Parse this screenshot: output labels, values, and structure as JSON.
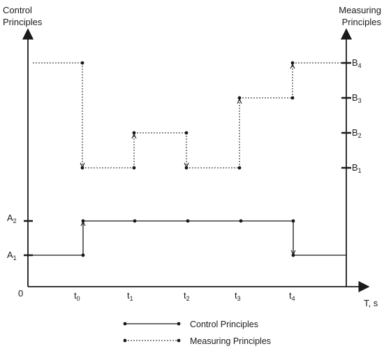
{
  "labels": {
    "left_axis_title": [
      "Control",
      "Principles"
    ],
    "right_axis_title": [
      "Measuring",
      "Principles"
    ],
    "origin": "0",
    "x_axis_label": "T, s"
  },
  "x_ticks": [
    {
      "base": "t",
      "sub": "0"
    },
    {
      "base": "t",
      "sub": "1"
    },
    {
      "base": "t",
      "sub": "2"
    },
    {
      "base": "t",
      "sub": "3"
    },
    {
      "base": "t",
      "sub": "4"
    }
  ],
  "left_ticks": [
    {
      "base": "A",
      "sub": "1"
    },
    {
      "base": "A",
      "sub": "2"
    }
  ],
  "right_ticks": [
    {
      "base": "B",
      "sub": "1"
    },
    {
      "base": "B",
      "sub": "2"
    },
    {
      "base": "B",
      "sub": "3"
    },
    {
      "base": "B",
      "sub": "4"
    }
  ],
  "legend": [
    {
      "label": "Control Principles",
      "style": "solid"
    },
    {
      "label": "Measuring Principles",
      "style": "dotted"
    }
  ],
  "signals": {
    "control": {
      "style": "solid",
      "level_labels": [
        "A1",
        "A2"
      ],
      "points": [
        {
          "t": "0",
          "level": "A1"
        },
        {
          "t": "t0",
          "level": "A1"
        },
        {
          "t": "t0",
          "level": "A2"
        },
        {
          "t": "t1",
          "level": "A2"
        },
        {
          "t": "t2",
          "level": "A2"
        },
        {
          "t": "t3",
          "level": "A2"
        },
        {
          "t": "t4",
          "level": "A2"
        },
        {
          "t": "t4",
          "level": "A1"
        },
        {
          "t": "end",
          "level": "A1"
        }
      ]
    },
    "measuring": {
      "style": "dotted",
      "level_labels": [
        "B1",
        "B2",
        "B3",
        "B4"
      ],
      "points": [
        {
          "t": "0",
          "level": "B4"
        },
        {
          "t": "t0",
          "level": "B4"
        },
        {
          "t": "t0",
          "level": "B1"
        },
        {
          "t": "t1",
          "level": "B1"
        },
        {
          "t": "t1",
          "level": "B2"
        },
        {
          "t": "t2",
          "level": "B2"
        },
        {
          "t": "t2",
          "level": "B1"
        },
        {
          "t": "t3",
          "level": "B1"
        },
        {
          "t": "t3",
          "level": "B3"
        },
        {
          "t": "t4",
          "level": "B3"
        },
        {
          "t": "t4",
          "level": "B4"
        },
        {
          "t": "end",
          "level": "B4"
        }
      ]
    }
  },
  "colors": {
    "ink": "#1a1a1a",
    "background": "#ffffff"
  }
}
